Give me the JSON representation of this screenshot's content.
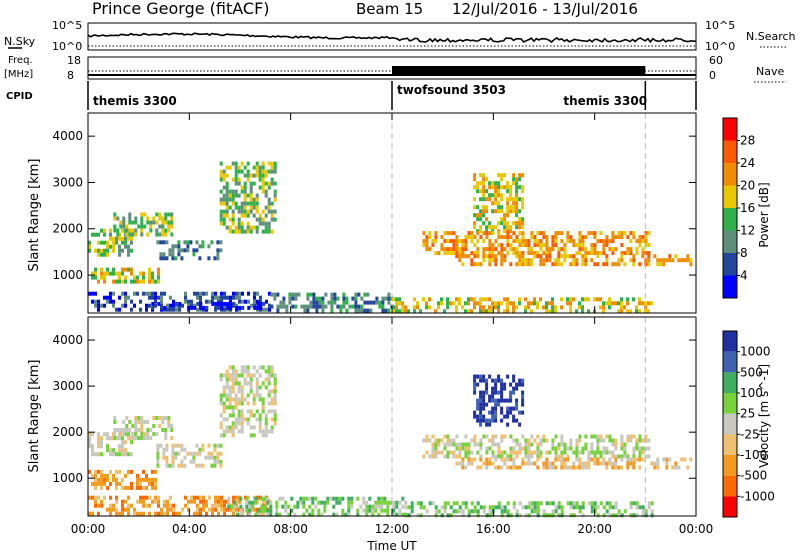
{
  "header": {
    "station": "Prince George (fitACF)",
    "beam": "Beam 15",
    "date_range": "12/Jul/2016 - 13/Jul/2016"
  },
  "strip_labels": {
    "nsky": "N.Sky",
    "freq": "Freq.",
    "freq_unit": "[MHz]",
    "cpid": "CPID",
    "nsearch": "N.Search",
    "nave": "Nave"
  },
  "strip_ticks": {
    "noise_left": [
      "10^5",
      "10^0"
    ],
    "noise_right": [
      "10^5",
      "10^0"
    ],
    "freq_left": [
      "18",
      "8"
    ],
    "nave_right": [
      "60",
      "0"
    ]
  },
  "cpid_segments": [
    {
      "label": "themis 3300",
      "start_hour": 0,
      "end_hour": 12
    },
    {
      "label": "twofsound 3503",
      "start_hour": 12,
      "end_hour": 22
    },
    {
      "label": "themis 3300",
      "start_hour": 22,
      "end_hour": 24
    }
  ],
  "chart_data": [
    {
      "type": "heatmap",
      "name": "power",
      "ylabel": "Slant Range [km]",
      "colorbar_label": "Power [dB]",
      "colorbar_ticks": [
        "28",
        "24",
        "20",
        "16",
        "12",
        "8",
        "4"
      ],
      "colorbar_colors": [
        "#ff0000",
        "#ff5a00",
        "#f08c00",
        "#e8c800",
        "#2fb04a",
        "#5f8f7c",
        "#21469a",
        "#0000ff"
      ],
      "xlim": [
        0,
        24
      ],
      "ylim": [
        180,
        4500
      ],
      "yticks": [
        1000,
        2000,
        3000,
        4000
      ],
      "regions": [
        {
          "start": 0.0,
          "end": 7.2,
          "range_start": 220,
          "range_end": 640,
          "level": 6
        },
        {
          "start": 2.5,
          "end": 7.0,
          "range_start": 260,
          "range_end": 420,
          "level": 7
        },
        {
          "start": 7.2,
          "end": 12.0,
          "range_start": 220,
          "range_end": 620,
          "level": 5
        },
        {
          "start": 12.0,
          "end": 22.2,
          "range_start": 220,
          "range_end": 520,
          "level": 3
        },
        {
          "start": 0.0,
          "end": 2.8,
          "range_start": 820,
          "range_end": 1160,
          "level": 3
        },
        {
          "start": 0.0,
          "end": 1.7,
          "range_start": 1480,
          "range_end": 2000,
          "level": 4
        },
        {
          "start": 1.0,
          "end": 3.3,
          "range_start": 1850,
          "range_end": 2350,
          "level": 4
        },
        {
          "start": 2.7,
          "end": 5.2,
          "range_start": 1350,
          "range_end": 1750,
          "level": 5
        },
        {
          "start": 5.2,
          "end": 7.4,
          "range_start": 1900,
          "range_end": 3450,
          "level": 4
        },
        {
          "start": 15.2,
          "end": 17.2,
          "range_start": 1950,
          "range_end": 3200,
          "level": 3
        },
        {
          "start": 13.2,
          "end": 22.1,
          "range_start": 1500,
          "range_end": 1950,
          "level": 2
        },
        {
          "start": 14.5,
          "end": 23.8,
          "range_start": 1250,
          "range_end": 1450,
          "level": 2
        }
      ]
    },
    {
      "type": "heatmap",
      "name": "velocity",
      "ylabel": "Slant Range [km]",
      "xlabel": "Time UT",
      "colorbar_label": "Velocity [m s^-1]",
      "colorbar_ticks": [
        "1000",
        "500",
        "100",
        "25",
        "-25",
        "-100",
        "-500",
        "-1000"
      ],
      "colorbar_colors": [
        "#2030a0",
        "#3f63b0",
        "#3fae5e",
        "#76d13b",
        "#c8c8c0",
        "#f0c070",
        "#f39a20",
        "#ff6a00",
        "#ff0000"
      ],
      "xlim": [
        0,
        24
      ],
      "ylim": [
        180,
        4500
      ],
      "xticks": [
        "00:00",
        "04:00",
        "08:00",
        "12:00",
        "16:00",
        "20:00",
        "00:00"
      ],
      "yticks": [
        1000,
        2000,
        3000,
        4000
      ],
      "regions": [
        {
          "start": 0.0,
          "end": 7.2,
          "range_start": 230,
          "range_end": 620,
          "level": 6
        },
        {
          "start": 5.5,
          "end": 12.5,
          "range_start": 240,
          "range_end": 600,
          "level": 3
        },
        {
          "start": 12.5,
          "end": 22.3,
          "range_start": 230,
          "range_end": 500,
          "level": 3
        },
        {
          "start": 0.0,
          "end": 2.8,
          "range_start": 800,
          "range_end": 1180,
          "level": 6
        },
        {
          "start": 0.0,
          "end": 1.7,
          "range_start": 1480,
          "range_end": 2000,
          "level": 4
        },
        {
          "start": 1.0,
          "end": 3.3,
          "range_start": 1850,
          "range_end": 2350,
          "level": 4
        },
        {
          "start": 2.7,
          "end": 5.2,
          "range_start": 1300,
          "range_end": 1750,
          "level": 4
        },
        {
          "start": 5.2,
          "end": 7.4,
          "range_start": 1900,
          "range_end": 3450,
          "level": 4
        },
        {
          "start": 15.2,
          "end": 17.2,
          "range_start": 2150,
          "range_end": 3250,
          "level": 0
        },
        {
          "start": 13.2,
          "end": 22.1,
          "range_start": 1500,
          "range_end": 1950,
          "level": 4
        },
        {
          "start": 14.5,
          "end": 23.8,
          "range_start": 1250,
          "range_end": 1450,
          "level": 5
        }
      ]
    }
  ]
}
